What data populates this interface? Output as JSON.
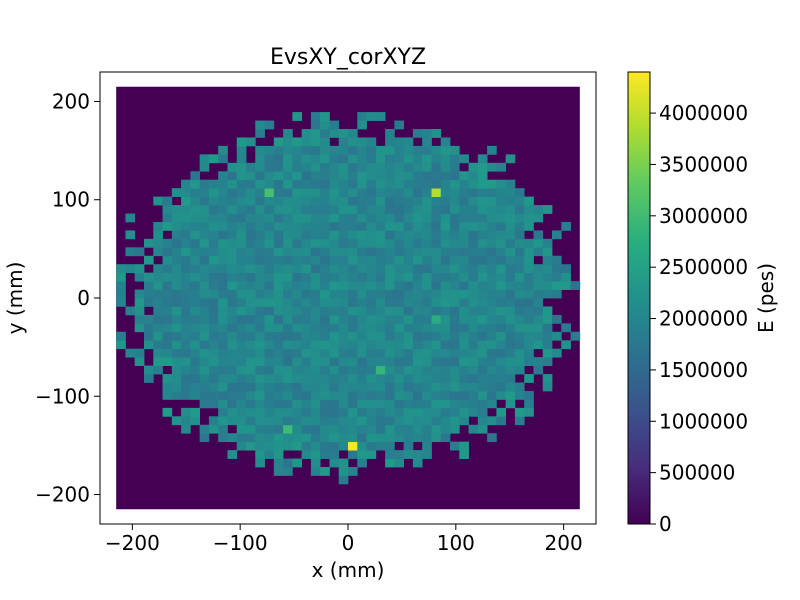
{
  "chart_data": {
    "type": "heatmap",
    "title": "EvsXY_corXYZ",
    "xlabel": "x (mm)",
    "ylabel": "y (mm)",
    "xlim": [
      -230,
      230
    ],
    "ylim": [
      -230,
      230
    ],
    "bin_range": [
      -215,
      215
    ],
    "bins": 50,
    "x_ticks": [
      -200,
      -100,
      0,
      100,
      200
    ],
    "y_ticks": [
      -200,
      -100,
      0,
      100,
      200
    ],
    "x_tick_labels": [
      "−200",
      "−100",
      "0",
      "100",
      "200"
    ],
    "y_tick_labels": [
      "−200",
      "−100",
      "0",
      "100",
      "200"
    ],
    "grid": false,
    "colormap": "viridis",
    "colorbar": {
      "label": "E (pes)",
      "range": [
        0,
        4400000
      ],
      "ticks": [
        0,
        500000,
        1000000,
        1500000,
        2000000,
        2500000,
        3000000,
        3500000,
        4000000
      ],
      "tick_labels": [
        "0",
        "500000",
        "1000000",
        "1500000",
        "2000000",
        "2500000",
        "3000000",
        "3500000",
        "4000000"
      ]
    },
    "background_value": 0,
    "typical_bin_value": 2000000,
    "hot_bins": [
      {
        "x": 4,
        "y": -151,
        "value": 4400000
      },
      {
        "x": 81,
        "y": 107,
        "value": 3900000
      },
      {
        "x": -73,
        "y": 107,
        "value": 3100000
      },
      {
        "x": -56,
        "y": -134,
        "value": 3000000
      },
      {
        "x": 30,
        "y": -73,
        "value": 2900000
      },
      {
        "x": 81,
        "y": -21,
        "value": 2700000
      }
    ]
  }
}
